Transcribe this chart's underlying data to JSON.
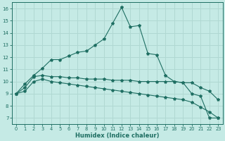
{
  "xlabel": "Humidex (Indice chaleur)",
  "bg_color": "#c5eae5",
  "grid_color": "#b0d8d2",
  "line_color": "#1e6e62",
  "xlim": [
    -0.5,
    23.5
  ],
  "ylim": [
    6.5,
    16.5
  ],
  "xticks": [
    0,
    1,
    2,
    3,
    4,
    5,
    6,
    7,
    8,
    9,
    10,
    11,
    12,
    13,
    14,
    15,
    16,
    17,
    18,
    19,
    20,
    21,
    22,
    23
  ],
  "yticks": [
    7,
    8,
    9,
    10,
    11,
    12,
    13,
    14,
    15,
    16
  ],
  "line1_x": [
    0,
    1,
    2,
    3,
    4,
    5,
    6,
    7,
    8,
    9,
    10,
    11,
    12,
    13,
    14,
    15,
    16,
    17,
    18,
    19,
    20,
    21,
    22,
    23
  ],
  "line1_y": [
    9.0,
    9.8,
    10.5,
    11.1,
    11.8,
    11.8,
    12.1,
    12.4,
    12.5,
    13.0,
    13.5,
    14.8,
    16.1,
    14.5,
    14.6,
    12.3,
    12.2,
    10.5,
    10.0,
    9.9,
    9.0,
    8.8,
    7.0,
    7.0
  ],
  "line2_x": [
    0,
    1,
    2,
    3,
    4,
    5,
    6,
    7,
    8,
    9,
    10,
    11,
    12,
    13,
    14,
    15,
    16,
    17,
    18,
    19,
    20,
    21,
    22,
    23
  ],
  "line2_y": [
    9.0,
    9.5,
    10.4,
    10.5,
    10.4,
    10.4,
    10.3,
    10.3,
    10.2,
    10.2,
    10.2,
    10.1,
    10.1,
    10.1,
    10.0,
    10.0,
    10.0,
    10.0,
    10.0,
    9.9,
    9.9,
    9.5,
    9.2,
    8.5
  ],
  "line3_x": [
    0,
    1,
    2,
    3,
    4,
    5,
    6,
    7,
    8,
    9,
    10,
    11,
    12,
    13,
    14,
    15,
    16,
    17,
    18,
    19,
    20,
    21,
    22,
    23
  ],
  "line3_y": [
    9.0,
    9.2,
    10.0,
    10.2,
    10.0,
    9.9,
    9.8,
    9.7,
    9.6,
    9.5,
    9.4,
    9.3,
    9.2,
    9.1,
    9.0,
    8.9,
    8.8,
    8.7,
    8.6,
    8.5,
    8.3,
    7.9,
    7.5,
    7.0
  ]
}
